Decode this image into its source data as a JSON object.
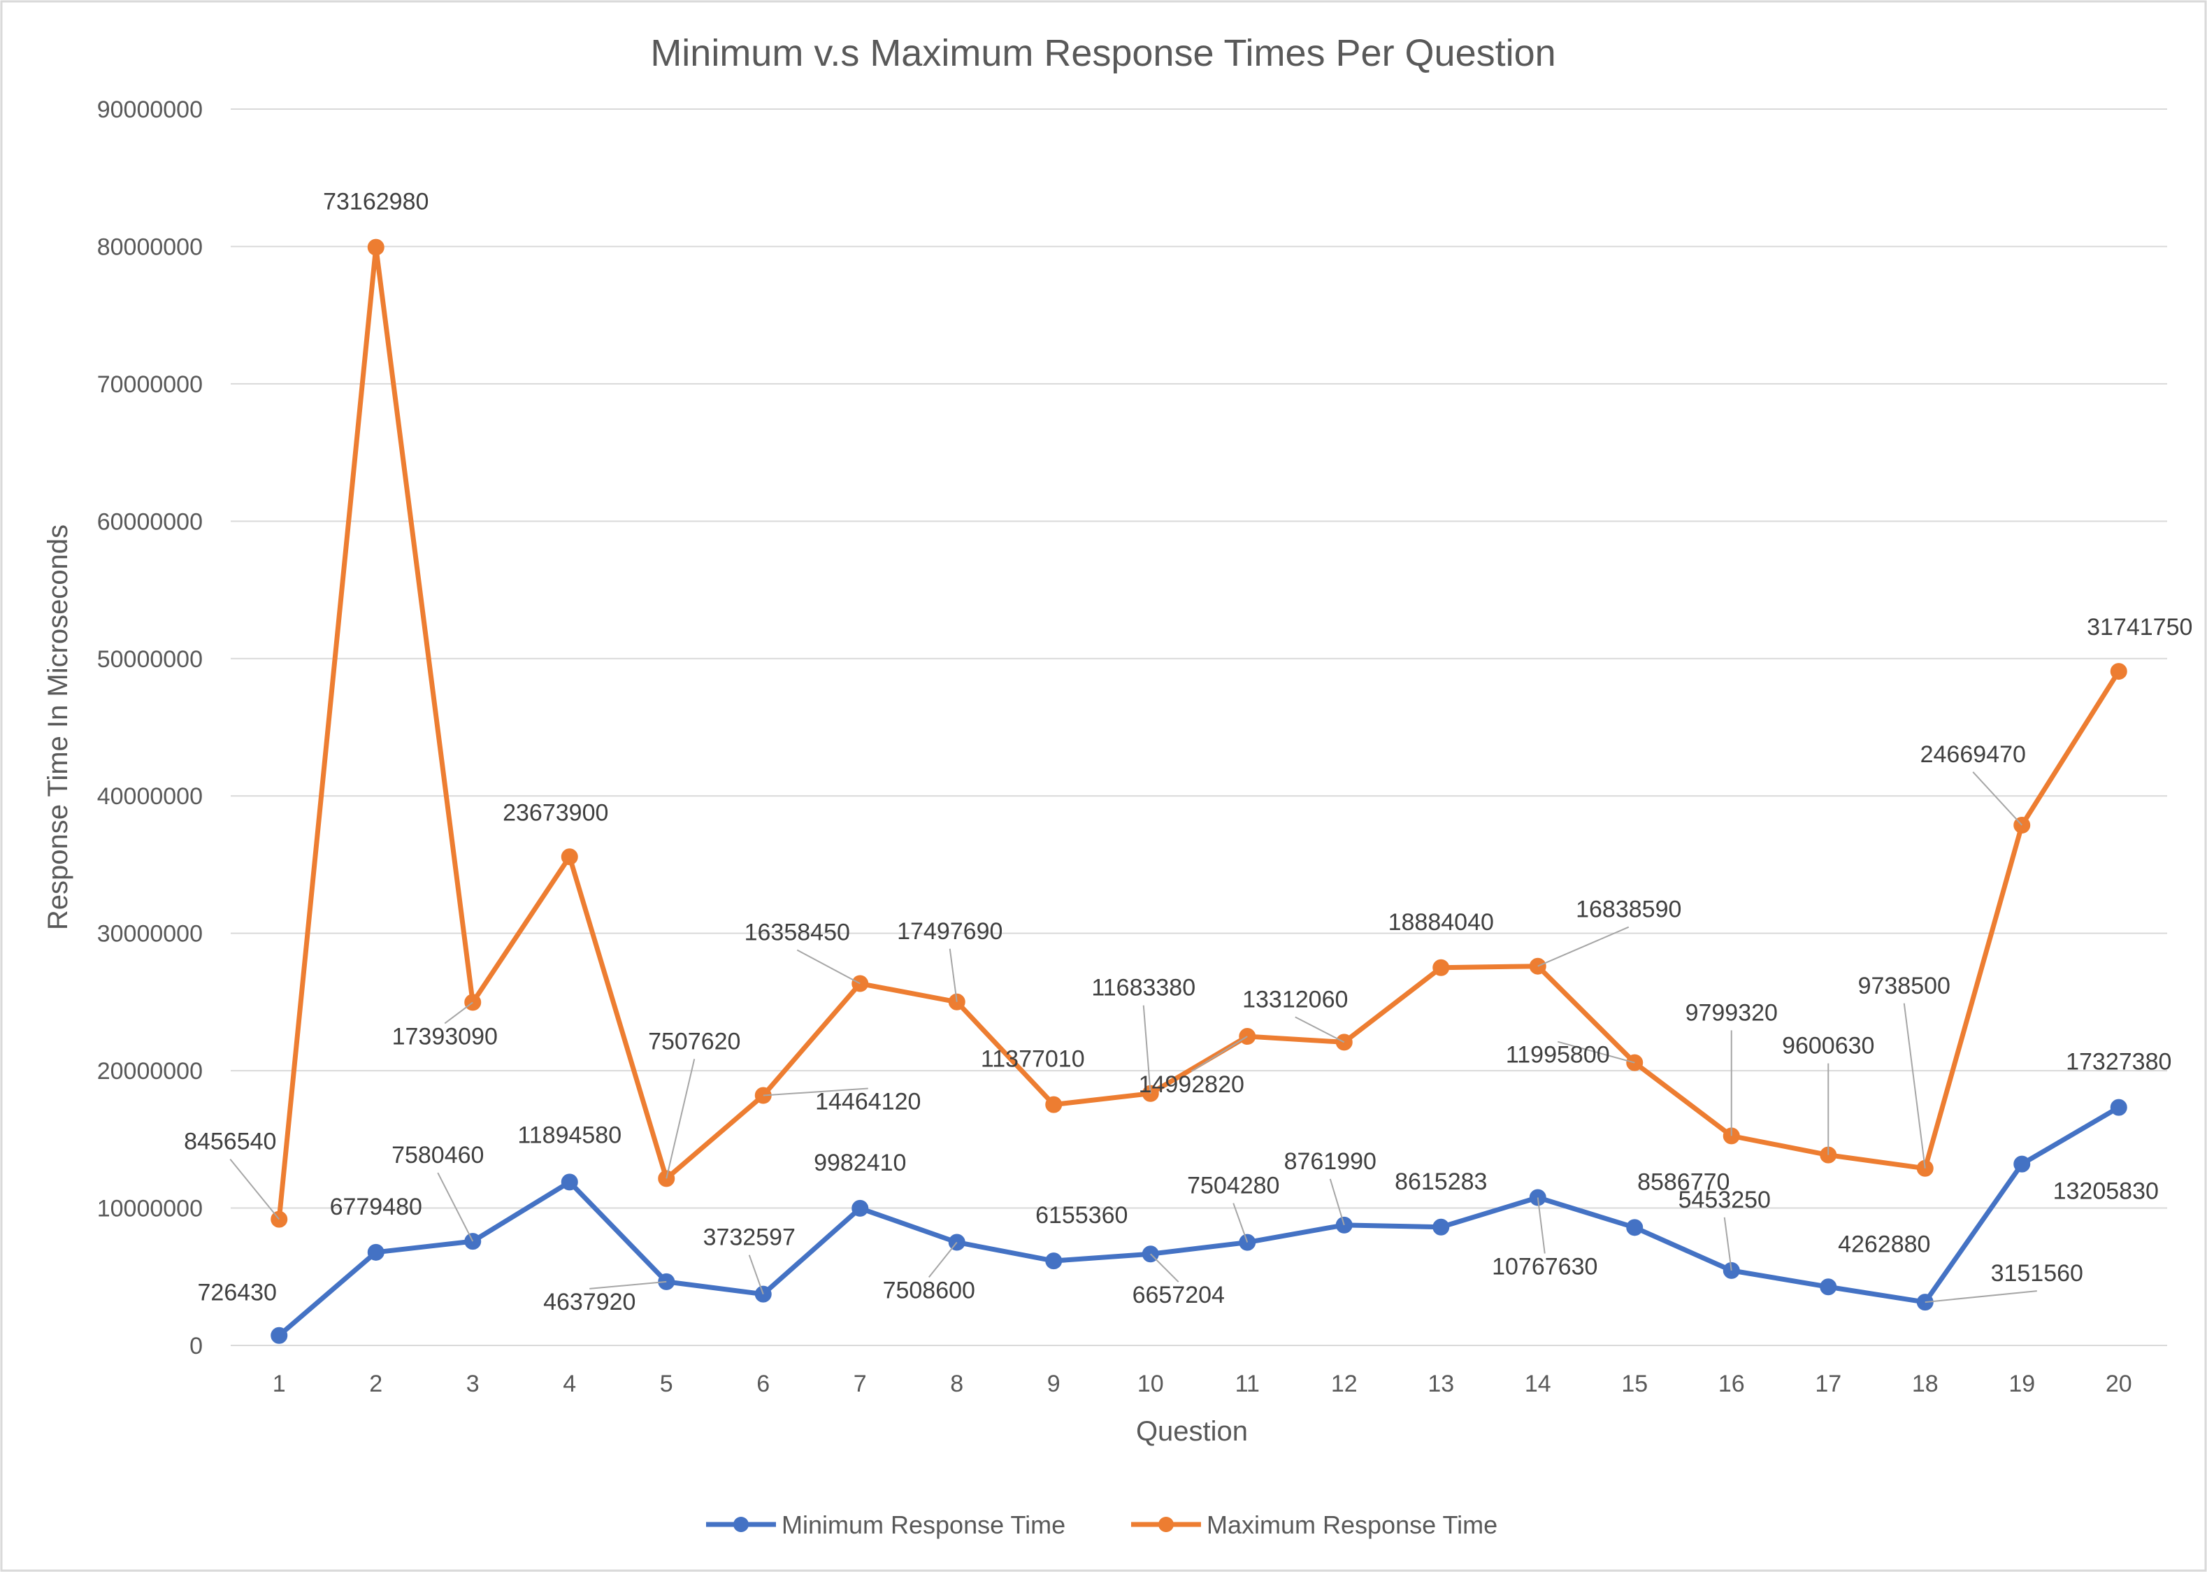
{
  "chart_data": {
    "type": "line",
    "title": "Minimum v.s Maximum Response Times Per Question",
    "xlabel": "Question",
    "ylabel": "Response Time In Microseconds",
    "categories": [
      "1",
      "2",
      "3",
      "4",
      "5",
      "6",
      "7",
      "8",
      "9",
      "10",
      "11",
      "12",
      "13",
      "14",
      "15",
      "16",
      "17",
      "18",
      "19",
      "20"
    ],
    "ylim": [
      0,
      90000000
    ],
    "yticks": [
      "0",
      "10000000",
      "20000000",
      "30000000",
      "40000000",
      "50000000",
      "60000000",
      "70000000",
      "80000000",
      "90000000"
    ],
    "grid": true,
    "legend_position": "bottom",
    "series": [
      {
        "name": "Minimum Response Time",
        "color": "#4472C4",
        "values": [
          726430,
          6779480,
          7580460,
          11894580,
          4637920,
          3732597,
          9982410,
          7508600,
          6155360,
          6657204,
          7504280,
          8761990,
          8615283,
          10767630,
          8586770,
          5453250,
          4262880,
          3151560,
          13205830,
          17327380
        ],
        "labels": [
          "726430",
          "6779480",
          "7580460",
          "11894580",
          "4637920",
          "3732597",
          "9982410",
          "7508600",
          "6155360",
          "6657204",
          "7504280",
          "8761990",
          "8615283",
          "10767630",
          "8586770",
          "5453250",
          "4262880",
          "3151560",
          "13205830",
          "17327380"
        ]
      },
      {
        "name": "Maximum Response Time",
        "color": "#ED7D31",
        "values": [
          9182970,
          79942460,
          24973550,
          35568480,
          12145540,
          18196717,
          26340860,
          25006290,
          17532370,
          18340590,
          22497100,
          22074050,
          27499323,
          27606220,
          20582570,
          15252570,
          13863510,
          12890060,
          37875300,
          49069130
        ],
        "labels": [
          "8456540",
          "73162980",
          "17393090",
          "23673900",
          "7507620",
          "14464120",
          "16358450",
          "17497690",
          "11377010",
          "11683380",
          "14992820",
          "13312060",
          "18884040",
          "16838590",
          "11995800",
          "9799320",
          "9600630",
          "9738500",
          "24669470",
          "31741750"
        ]
      }
    ]
  }
}
